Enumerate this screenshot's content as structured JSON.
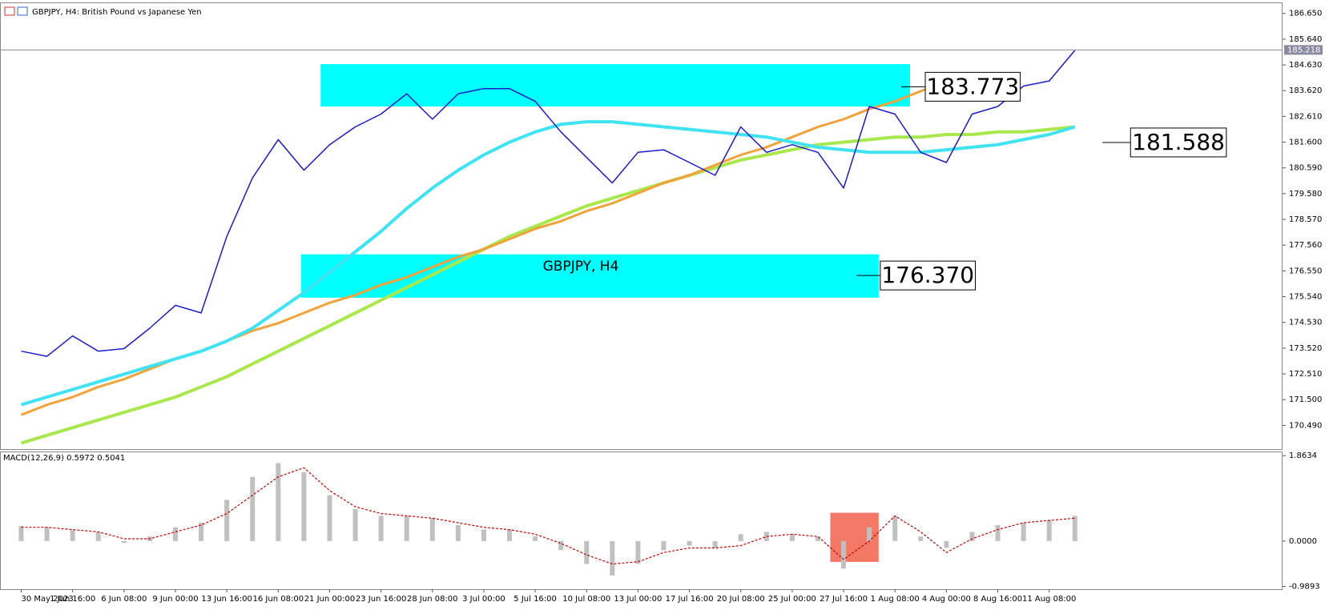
{
  "chart_data": [
    {
      "type": "line",
      "title": "GBPJPY, H4: British Pound vs Japanese Yen",
      "watermark": "GBPJPY, H4",
      "categories": [
        "30 May 2023",
        null,
        "1 Jun 16:00",
        null,
        "6 Jun 08:00",
        null,
        "9 Jun 00:00",
        null,
        "13 Jun 16:00",
        null,
        "16 Jun 08:00",
        null,
        "21 Jun 00:00",
        null,
        "23 Jun 16:00",
        null,
        "28 Jun 08:00",
        null,
        "3 Jul 00:00",
        null,
        "5 Jul 16:00",
        null,
        "10 Jul 08:00",
        null,
        "13 Jul 00:00",
        null,
        "17 Jul 16:00",
        null,
        "20 Jul 08:00",
        null,
        "25 Jul 00:00",
        null,
        "27 Jul 16:00",
        null,
        "1 Aug 08:00",
        null,
        "4 Aug 00:00",
        null,
        "8 Aug 16:00",
        null,
        "11 Aug 08:00",
        null
      ],
      "series": [
        {
          "name": "GBPJPY",
          "color": "#1c1cc8",
          "width": 1.5,
          "values": [
            173.4,
            173.2,
            174.0,
            173.4,
            173.5,
            174.3,
            175.2,
            174.9,
            177.9,
            180.2,
            181.7,
            180.5,
            181.5,
            182.2,
            182.7,
            183.5,
            182.5,
            183.5,
            183.7,
            183.7,
            183.2,
            182.0,
            181.0,
            180.0,
            181.2,
            181.3,
            180.8,
            180.3,
            182.2,
            181.2,
            181.5,
            181.2,
            179.8,
            183.0,
            182.7,
            181.2,
            180.8,
            182.7,
            183.0,
            183.8,
            184.0,
            185.2
          ]
        },
        {
          "name": "MA cyan",
          "color": "#3fe3f2",
          "width": 4,
          "values": [
            171.3,
            171.6,
            171.9,
            172.2,
            172.5,
            172.8,
            173.1,
            173.4,
            173.8,
            174.3,
            175.0,
            175.7,
            176.5,
            177.3,
            178.1,
            179.0,
            179.8,
            180.5,
            181.1,
            181.6,
            182.0,
            182.3,
            182.4,
            182.4,
            182.3,
            182.2,
            182.1,
            182.0,
            181.9,
            181.8,
            181.6,
            181.4,
            181.3,
            181.2,
            181.2,
            181.2,
            181.3,
            181.4,
            181.5,
            181.7,
            181.9,
            182.2
          ]
        },
        {
          "name": "MA orange",
          "color": "#f2a23a",
          "width": 3,
          "values": [
            170.9,
            171.3,
            171.6,
            172.0,
            172.3,
            172.7,
            173.1,
            173.4,
            173.8,
            174.2,
            174.5,
            174.9,
            175.3,
            175.6,
            176.0,
            176.3,
            176.7,
            177.1,
            177.4,
            177.8,
            178.2,
            178.5,
            178.9,
            179.2,
            179.6,
            180.0,
            180.3,
            180.7,
            181.1,
            181.4,
            181.8,
            182.2,
            182.5,
            182.9,
            183.2,
            183.6,
            184.0,
            184.3,
            null,
            null,
            null,
            null
          ]
        },
        {
          "name": "MA green",
          "color": "#a9e84c",
          "width": 4,
          "values": [
            169.8,
            170.1,
            170.4,
            170.7,
            171.0,
            171.3,
            171.6,
            172.0,
            172.4,
            172.9,
            173.4,
            173.9,
            174.4,
            174.9,
            175.4,
            175.9,
            176.4,
            176.9,
            177.4,
            177.9,
            178.3,
            178.7,
            179.1,
            179.4,
            179.7,
            180.0,
            180.3,
            180.6,
            180.9,
            181.1,
            181.3,
            181.5,
            181.6,
            181.7,
            181.8,
            181.8,
            181.9,
            181.9,
            182.0,
            182.0,
            182.1,
            182.2
          ]
        }
      ],
      "ylim": [
        169.56,
        187.05
      ],
      "yticks": [
        {
          "value": 170.49,
          "label": "170.490"
        },
        {
          "value": 171.5,
          "label": "171.500"
        },
        {
          "value": 172.51,
          "label": "172.510"
        },
        {
          "value": 173.52,
          "label": "173.520"
        },
        {
          "value": 174.53,
          "label": "174.530"
        },
        {
          "value": 175.54,
          "label": "175.540"
        },
        {
          "value": 176.55,
          "label": "176.550"
        },
        {
          "value": 177.56,
          "label": "177.560"
        },
        {
          "value": 178.57,
          "label": "178.570"
        },
        {
          "value": 179.58,
          "label": "179.580"
        },
        {
          "value": 180.59,
          "label": "180.590"
        },
        {
          "value": 181.6,
          "label": "181.600"
        },
        {
          "value": 182.61,
          "label": "182.610"
        },
        {
          "value": 183.62,
          "label": "183.620"
        },
        {
          "value": 184.63,
          "label": "184.630"
        },
        {
          "value": 185.64,
          "label": "185.640"
        },
        {
          "value": 186.65,
          "label": "186.650"
        }
      ],
      "last_price": 185.218,
      "zones": [
        {
          "low": 183.0,
          "high": 184.66,
          "color": "#00ffff"
        },
        {
          "low": 175.5,
          "high": 177.2,
          "color": "#00ffff"
        }
      ],
      "annotations": [
        183.773,
        {
          "value": 176.37,
          "label": "176.370"
        },
        181.588
      ]
    },
    {
      "type": "bar",
      "title": "MACD(12,26,9) 0.5972 0.5041",
      "series": [
        {
          "name": "MACD",
          "color": "#c0c0c0",
          "style": "bar",
          "values": [
            0.33,
            0.3,
            0.25,
            0.2,
            -0.04,
            0.1,
            0.3,
            0.4,
            0.9,
            1.4,
            1.7,
            1.5,
            1.0,
            0.7,
            0.55,
            0.55,
            0.5,
            0.35,
            0.25,
            0.25,
            0.1,
            -0.2,
            -0.5,
            -0.75,
            -0.5,
            -0.2,
            -0.1,
            -0.15,
            0.15,
            0.2,
            0.15,
            0.1,
            -0.6,
            0.3,
            0.55,
            0.1,
            -0.15,
            0.2,
            0.35,
            0.4,
            0.45,
            0.55
          ]
        },
        {
          "name": "Signal",
          "color": "#cc0000",
          "style": "dashed",
          "values": [
            0.3,
            0.3,
            0.25,
            0.2,
            0.05,
            0.05,
            0.2,
            0.35,
            0.6,
            1.0,
            1.4,
            1.6,
            1.1,
            0.75,
            0.6,
            0.55,
            0.5,
            0.4,
            0.3,
            0.25,
            0.15,
            -0.05,
            -0.3,
            -0.5,
            -0.45,
            -0.25,
            -0.15,
            -0.15,
            -0.1,
            0.1,
            0.15,
            0.1,
            -0.4,
            0.0,
            0.55,
            0.2,
            -0.25,
            0.05,
            0.25,
            0.4,
            0.45,
            0.5
          ]
        }
      ],
      "ylim": [
        -1.05,
        1.937
      ],
      "yticks": [
        1.8634,
        {
          "value": 0,
          "label": "0.0000"
        },
        -0.9893
      ]
    }
  ]
}
